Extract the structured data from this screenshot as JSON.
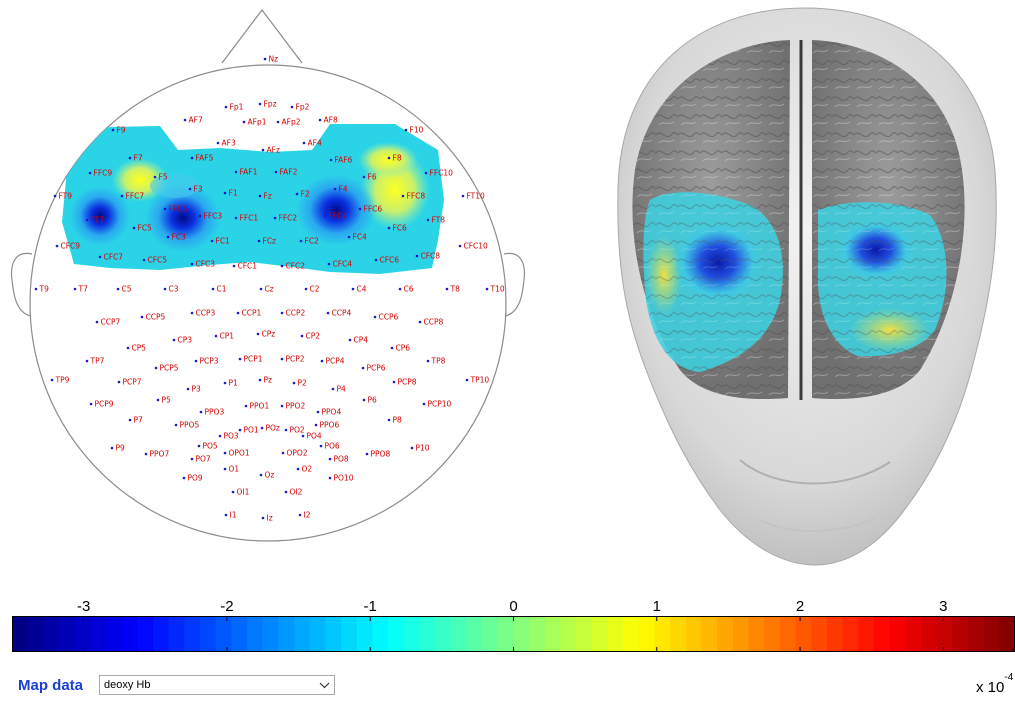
{
  "topo_map": {
    "channels": [
      "Nz",
      "Fp1",
      "Fpz",
      "Fp2",
      "AF7",
      "AFp1",
      "AFp2",
      "AF8",
      "F9",
      "AF3",
      "AFz",
      "AF4",
      "F10",
      "F7",
      "FAF5",
      "FAF1",
      "FAF2",
      "FAF6",
      "F8",
      "FFC9",
      "F5",
      "F3",
      "F1",
      "Fz",
      "F2",
      "F4",
      "F6",
      "FFC10",
      "FT9",
      "FFC7",
      "FFC5",
      "FFC3",
      "FFC1",
      "FFC2",
      "FFC4",
      "FFC6",
      "FFC8",
      "FT10",
      "FT7",
      "FC5",
      "FC3",
      "FC1",
      "FCz",
      "FC2",
      "FC4",
      "FC6",
      "FT8",
      "CFC9",
      "CFC7",
      "CFC5",
      "CFC3",
      "CFC1",
      "CFC2",
      "CFC4",
      "CFC6",
      "CFC8",
      "CFC10",
      "T9",
      "T7",
      "C5",
      "C3",
      "C1",
      "Cz",
      "C2",
      "C4",
      "C6",
      "T8",
      "T10",
      "CCP7",
      "CCP5",
      "CCP3",
      "CCP1",
      "CCP2",
      "CCP4",
      "CCP6",
      "CCP8",
      "CP5",
      "CP3",
      "CP1",
      "CPz",
      "CP2",
      "CP4",
      "CP6",
      "TP7",
      "PCP5",
      "PCP3",
      "PCP1",
      "PCP2",
      "PCP4",
      "PCP6",
      "TP8",
      "TP9",
      "PCP7",
      "P5",
      "P3",
      "P1",
      "Pz",
      "P2",
      "P4",
      "P6",
      "PCP8",
      "TP10",
      "PCP9",
      "P7",
      "PPO3",
      "PPO1",
      "PPO2",
      "PPO4",
      "P8",
      "PCP10",
      "PPO5",
      "PO1",
      "POz",
      "PO2",
      "PPO6",
      "PO3",
      "PO4",
      "P9",
      "PPO7",
      "PO7",
      "PO5",
      "OPO1",
      "OPO2",
      "PO6",
      "PO8",
      "PPO8",
      "P10",
      "PO9",
      "O1",
      "Oz",
      "O2",
      "PO10",
      "OI1",
      "OI2",
      "I1",
      "Iz",
      "I2"
    ]
  },
  "colorbar": {
    "tick_labels": [
      "-3",
      "-2",
      "-1",
      "0",
      "1",
      "2",
      "3"
    ],
    "min": -3.5,
    "max": 3.5,
    "scale_text": "x 10",
    "scale_exponent": "-4"
  },
  "map_control": {
    "label": "Map data",
    "selected": "deoxy Hb"
  },
  "colors": {
    "label_blue": "#1b3fd3",
    "channel_label": "#d40000",
    "channel_dot": "#1a1acc"
  }
}
